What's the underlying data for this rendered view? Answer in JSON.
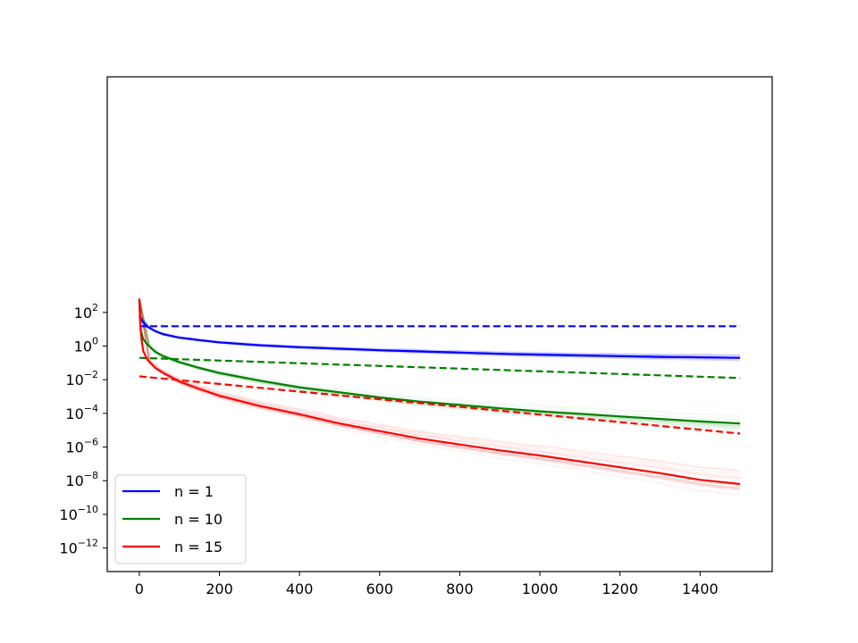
{
  "chart_data": {
    "type": "line",
    "title": "",
    "xlabel": "",
    "ylabel": "",
    "yscale": "log",
    "xlim": [
      -80,
      1580
    ],
    "ylim_exponent": [
      -13.4,
      16.0
    ],
    "grid": false,
    "legend_position": "lower-left",
    "x_ticks": [
      0,
      200,
      400,
      600,
      800,
      1000,
      1200,
      1400
    ],
    "x_tick_labels": [
      "0",
      "200",
      "400",
      "600",
      "800",
      "1000",
      "1200",
      "1400"
    ],
    "y_ticks_exponent": [
      2,
      0,
      -2,
      -4,
      -6,
      -8,
      -10,
      -12
    ],
    "y_tick_base": "10",
    "y_tick_exponent_labels": [
      "2",
      "0",
      "−2",
      "−4",
      "−6",
      "−8",
      "−10",
      "−12"
    ],
    "series": [
      {
        "name": "n = 1",
        "color": "#0000ff",
        "style": "solid",
        "x": [
          0,
          5,
          10,
          20,
          40,
          60,
          100,
          150,
          200,
          300,
          400,
          500,
          600,
          700,
          800,
          900,
          1000,
          1100,
          1200,
          1300,
          1400,
          1500
        ],
        "log10_y": [
          1.8,
          1.55,
          1.4,
          1.15,
          0.88,
          0.7,
          0.5,
          0.35,
          0.22,
          0.05,
          -0.07,
          -0.16,
          -0.25,
          -0.32,
          -0.39,
          -0.46,
          -0.51,
          -0.56,
          -0.6,
          -0.64,
          -0.67,
          -0.7
        ]
      },
      {
        "name": "",
        "color": "#0000ff",
        "style": "dashed",
        "x": [
          0,
          1500
        ],
        "log10_y": [
          1.18,
          1.18
        ]
      },
      {
        "name": "n = 10",
        "color": "#008000",
        "style": "solid",
        "x": [
          0,
          3,
          10,
          20,
          40,
          60,
          100,
          150,
          200,
          300,
          400,
          500,
          600,
          700,
          800,
          900,
          1000,
          1100,
          1200,
          1300,
          1400,
          1500
        ],
        "log10_y": [
          2.8,
          1.0,
          0.4,
          0.1,
          -0.35,
          -0.6,
          -0.95,
          -1.3,
          -1.6,
          -2.05,
          -2.45,
          -2.75,
          -3.05,
          -3.3,
          -3.5,
          -3.7,
          -3.88,
          -4.03,
          -4.18,
          -4.33,
          -4.48,
          -4.6
        ]
      },
      {
        "name": "",
        "color": "#008000",
        "style": "dashed",
        "x": [
          0,
          1500
        ],
        "log10_y": [
          -0.7,
          -1.9
        ]
      },
      {
        "name": "n = 15",
        "color": "#ff0000",
        "style": "solid",
        "x": [
          0,
          2,
          5,
          10,
          20,
          40,
          60,
          100,
          150,
          200,
          300,
          400,
          500,
          600,
          700,
          800,
          900,
          1000,
          1100,
          1200,
          1300,
          1400,
          1500
        ],
        "log10_y": [
          2.8,
          1.5,
          0.5,
          -0.3,
          -0.8,
          -1.3,
          -1.6,
          -2.1,
          -2.55,
          -2.95,
          -3.55,
          -4.05,
          -4.6,
          -5.05,
          -5.5,
          -5.85,
          -6.2,
          -6.5,
          -6.85,
          -7.2,
          -7.55,
          -7.95,
          -8.2
        ]
      },
      {
        "name": "",
        "color": "#ff0000",
        "style": "dashed",
        "x": [
          0,
          1500
        ],
        "log10_y": [
          -1.8,
          -5.2
        ]
      }
    ],
    "legend": [
      {
        "label": "n = 1",
        "color": "#0000ff"
      },
      {
        "label": "n = 10",
        "color": "#008000"
      },
      {
        "label": "n = 15",
        "color": "#ff0000"
      }
    ]
  }
}
